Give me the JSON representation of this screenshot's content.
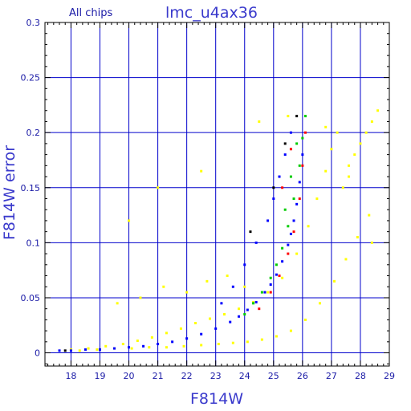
{
  "chart_data": {
    "type": "scatter",
    "title": "lmc_u4ax36",
    "corner_label": "All chips",
    "xlabel": "F814W",
    "ylabel": "F814W error",
    "xlim": [
      17.1,
      29.0
    ],
    "ylim": [
      -0.012,
      0.3
    ],
    "x_ticks": [
      "18",
      "19",
      "20",
      "21",
      "22",
      "23",
      "24",
      "25",
      "26",
      "27",
      "28",
      "29"
    ],
    "y_ticks": [
      "0",
      "0.05",
      "0.1",
      "0.15",
      "0.2",
      "0.25",
      "0.3"
    ],
    "grid": true,
    "grid_x_values": [
      18,
      19,
      20,
      21,
      22,
      23,
      24,
      25,
      26,
      27,
      28,
      29
    ],
    "grid_y_values": [
      0,
      0.05,
      0.1,
      0.15,
      0.2,
      0.25,
      0.3
    ],
    "colors": {
      "grid": "#0000cc",
      "frame": "#000000",
      "tick_text": "#1a1aa6",
      "title_text": "#3a3acc"
    },
    "series": [
      {
        "color": "#ffff00",
        "x": [
          18.0,
          18.6,
          19.2,
          19.8,
          20.3,
          20.8,
          21.3,
          21.8,
          22.3,
          22.8,
          23.3,
          23.8,
          24.3,
          24.8,
          25.3,
          25.8,
          26.2,
          26.5,
          26.8,
          27.0,
          27.2,
          27.4,
          27.6,
          27.8,
          28.0,
          28.2,
          28.4,
          28.6,
          18.3,
          18.9,
          19.5,
          20.1,
          20.7,
          21.3,
          21.9,
          22.5,
          23.1,
          23.6,
          24.1,
          24.6,
          25.1,
          25.6,
          26.1,
          26.6,
          27.1,
          27.5,
          27.9,
          28.3,
          19.6,
          20.4,
          21.2,
          22.0,
          22.7,
          23.4,
          24.0,
          20.0,
          21.0,
          22.5,
          24.5,
          25.5,
          26.8,
          27.6,
          28.4
        ],
        "y": [
          0.003,
          0.004,
          0.006,
          0.008,
          0.011,
          0.014,
          0.018,
          0.022,
          0.027,
          0.031,
          0.035,
          0.04,
          0.046,
          0.055,
          0.068,
          0.09,
          0.115,
          0.14,
          0.165,
          0.185,
          0.2,
          0.15,
          0.17,
          0.18,
          0.19,
          0.2,
          0.21,
          0.22,
          0.002,
          0.003,
          0.004,
          0.004,
          0.005,
          0.005,
          0.006,
          0.007,
          0.008,
          0.009,
          0.01,
          0.012,
          0.015,
          0.02,
          0.03,
          0.045,
          0.065,
          0.085,
          0.105,
          0.125,
          0.045,
          0.05,
          0.06,
          0.055,
          0.065,
          0.07,
          0.06,
          0.12,
          0.15,
          0.165,
          0.21,
          0.215,
          0.205,
          0.16,
          0.1
        ]
      },
      {
        "color": "#0000ff",
        "x": [
          17.6,
          18.0,
          18.5,
          19.0,
          19.5,
          20.0,
          20.5,
          21.0,
          21.5,
          22.0,
          22.5,
          23.0,
          23.5,
          23.8,
          24.1,
          24.4,
          24.7,
          24.9,
          25.1,
          25.3,
          25.5,
          25.6,
          25.7,
          25.8,
          25.9,
          26.0,
          23.2,
          23.6,
          24.0,
          24.4,
          24.8,
          25.0,
          25.2,
          25.4,
          25.6
        ],
        "y": [
          0.002,
          0.002,
          0.003,
          0.003,
          0.004,
          0.005,
          0.006,
          0.008,
          0.01,
          0.013,
          0.017,
          0.022,
          0.028,
          0.033,
          0.039,
          0.046,
          0.055,
          0.062,
          0.071,
          0.083,
          0.098,
          0.108,
          0.12,
          0.135,
          0.155,
          0.18,
          0.045,
          0.06,
          0.08,
          0.1,
          0.12,
          0.14,
          0.16,
          0.18,
          0.2
        ]
      },
      {
        "color": "#00cc00",
        "x": [
          24.0,
          24.3,
          24.6,
          24.9,
          25.1,
          25.3,
          25.5,
          25.7,
          25.9,
          26.0,
          26.1,
          25.4,
          25.6,
          25.8
        ],
        "y": [
          0.035,
          0.045,
          0.055,
          0.068,
          0.08,
          0.095,
          0.115,
          0.14,
          0.17,
          0.195,
          0.215,
          0.13,
          0.16,
          0.19
        ]
      },
      {
        "color": "#ff0000",
        "x": [
          24.5,
          24.9,
          25.2,
          25.5,
          25.7,
          25.9,
          26.0,
          26.1,
          25.3,
          25.6
        ],
        "y": [
          0.04,
          0.055,
          0.07,
          0.09,
          0.11,
          0.14,
          0.17,
          0.2,
          0.15,
          0.185
        ]
      },
      {
        "color": "#000000",
        "x": [
          17.8,
          24.2,
          25.0,
          25.4,
          25.8
        ],
        "y": [
          0.002,
          0.11,
          0.15,
          0.19,
          0.215
        ]
      }
    ]
  }
}
